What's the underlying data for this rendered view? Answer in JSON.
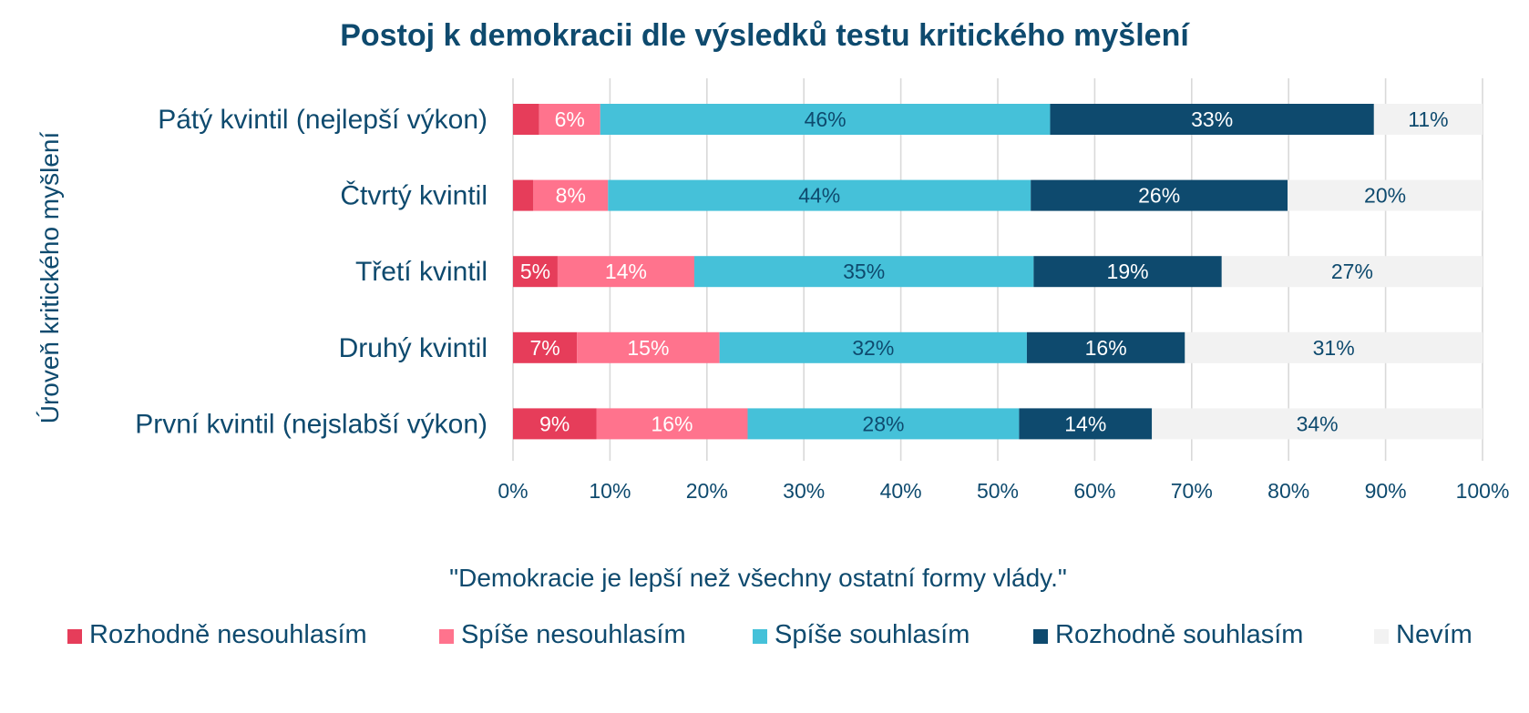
{
  "chart_data": {
    "type": "bar",
    "orientation": "horizontal",
    "stacked": "percent",
    "title": "Postoj k demokracii dle výsledků testu kritického myšlení",
    "ylabel": "Úroveň  kritického myšlení",
    "xlabel": "\"Demokracie je lepší než všechny ostatní formy vlády.\"",
    "xlim": [
      0,
      100
    ],
    "xticks": [
      0,
      10,
      20,
      30,
      40,
      50,
      60,
      70,
      80,
      90,
      100
    ],
    "xtick_labels": [
      "0%",
      "10%",
      "20%",
      "30%",
      "40%",
      "50%",
      "60%",
      "70%",
      "80%",
      "90%",
      "100%"
    ],
    "grid": true,
    "legend_position": "bottom",
    "categories": [
      "Pátý kvintil (nejlepší výkon)",
      "Čtvrtý kvintil",
      "Třetí kvintil",
      "Druhý kvintil",
      "První kvintil (nejslabší výkon)"
    ],
    "series": [
      {
        "name": "Rozhodně nesouhlasím",
        "color": "#E63D5A",
        "label_color": "#FFFFFF",
        "values": [
          2.7,
          2.1,
          4.6,
          6.6,
          8.6
        ],
        "labels": [
          "",
          "",
          "5%",
          "7%",
          "9%"
        ]
      },
      {
        "name": "Spíše nesouhlasím",
        "color": "#FF738D",
        "label_color": "#FFFFFF",
        "values": [
          6.3,
          7.7,
          14.1,
          14.7,
          15.6
        ],
        "labels": [
          "6%",
          "8%",
          "14%",
          "15%",
          "16%"
        ]
      },
      {
        "name": "Spíše souhlasím",
        "color": "#45C1D9",
        "label_color": "#0E4A6E",
        "values": [
          46.4,
          43.6,
          35.0,
          31.7,
          28.0
        ],
        "labels": [
          "46%",
          "44%",
          "35%",
          "32%",
          "28%"
        ]
      },
      {
        "name": "Rozhodně souhlasím",
        "color": "#0E4A6E",
        "label_color": "#FFFFFF",
        "values": [
          33.4,
          26.5,
          19.4,
          16.3,
          13.7
        ],
        "labels": [
          "33%",
          "26%",
          "19%",
          "16%",
          "14%"
        ]
      },
      {
        "name": "Nevím",
        "color": "#F2F2F2",
        "label_color": "#0E4A6E",
        "values": [
          11.2,
          20.1,
          26.9,
          30.7,
          34.1
        ],
        "labels": [
          "11%",
          "20%",
          "27%",
          "31%",
          "34%"
        ]
      }
    ]
  },
  "colors": {
    "text": "#0E4A6E",
    "grid": "#D9D9D9"
  }
}
